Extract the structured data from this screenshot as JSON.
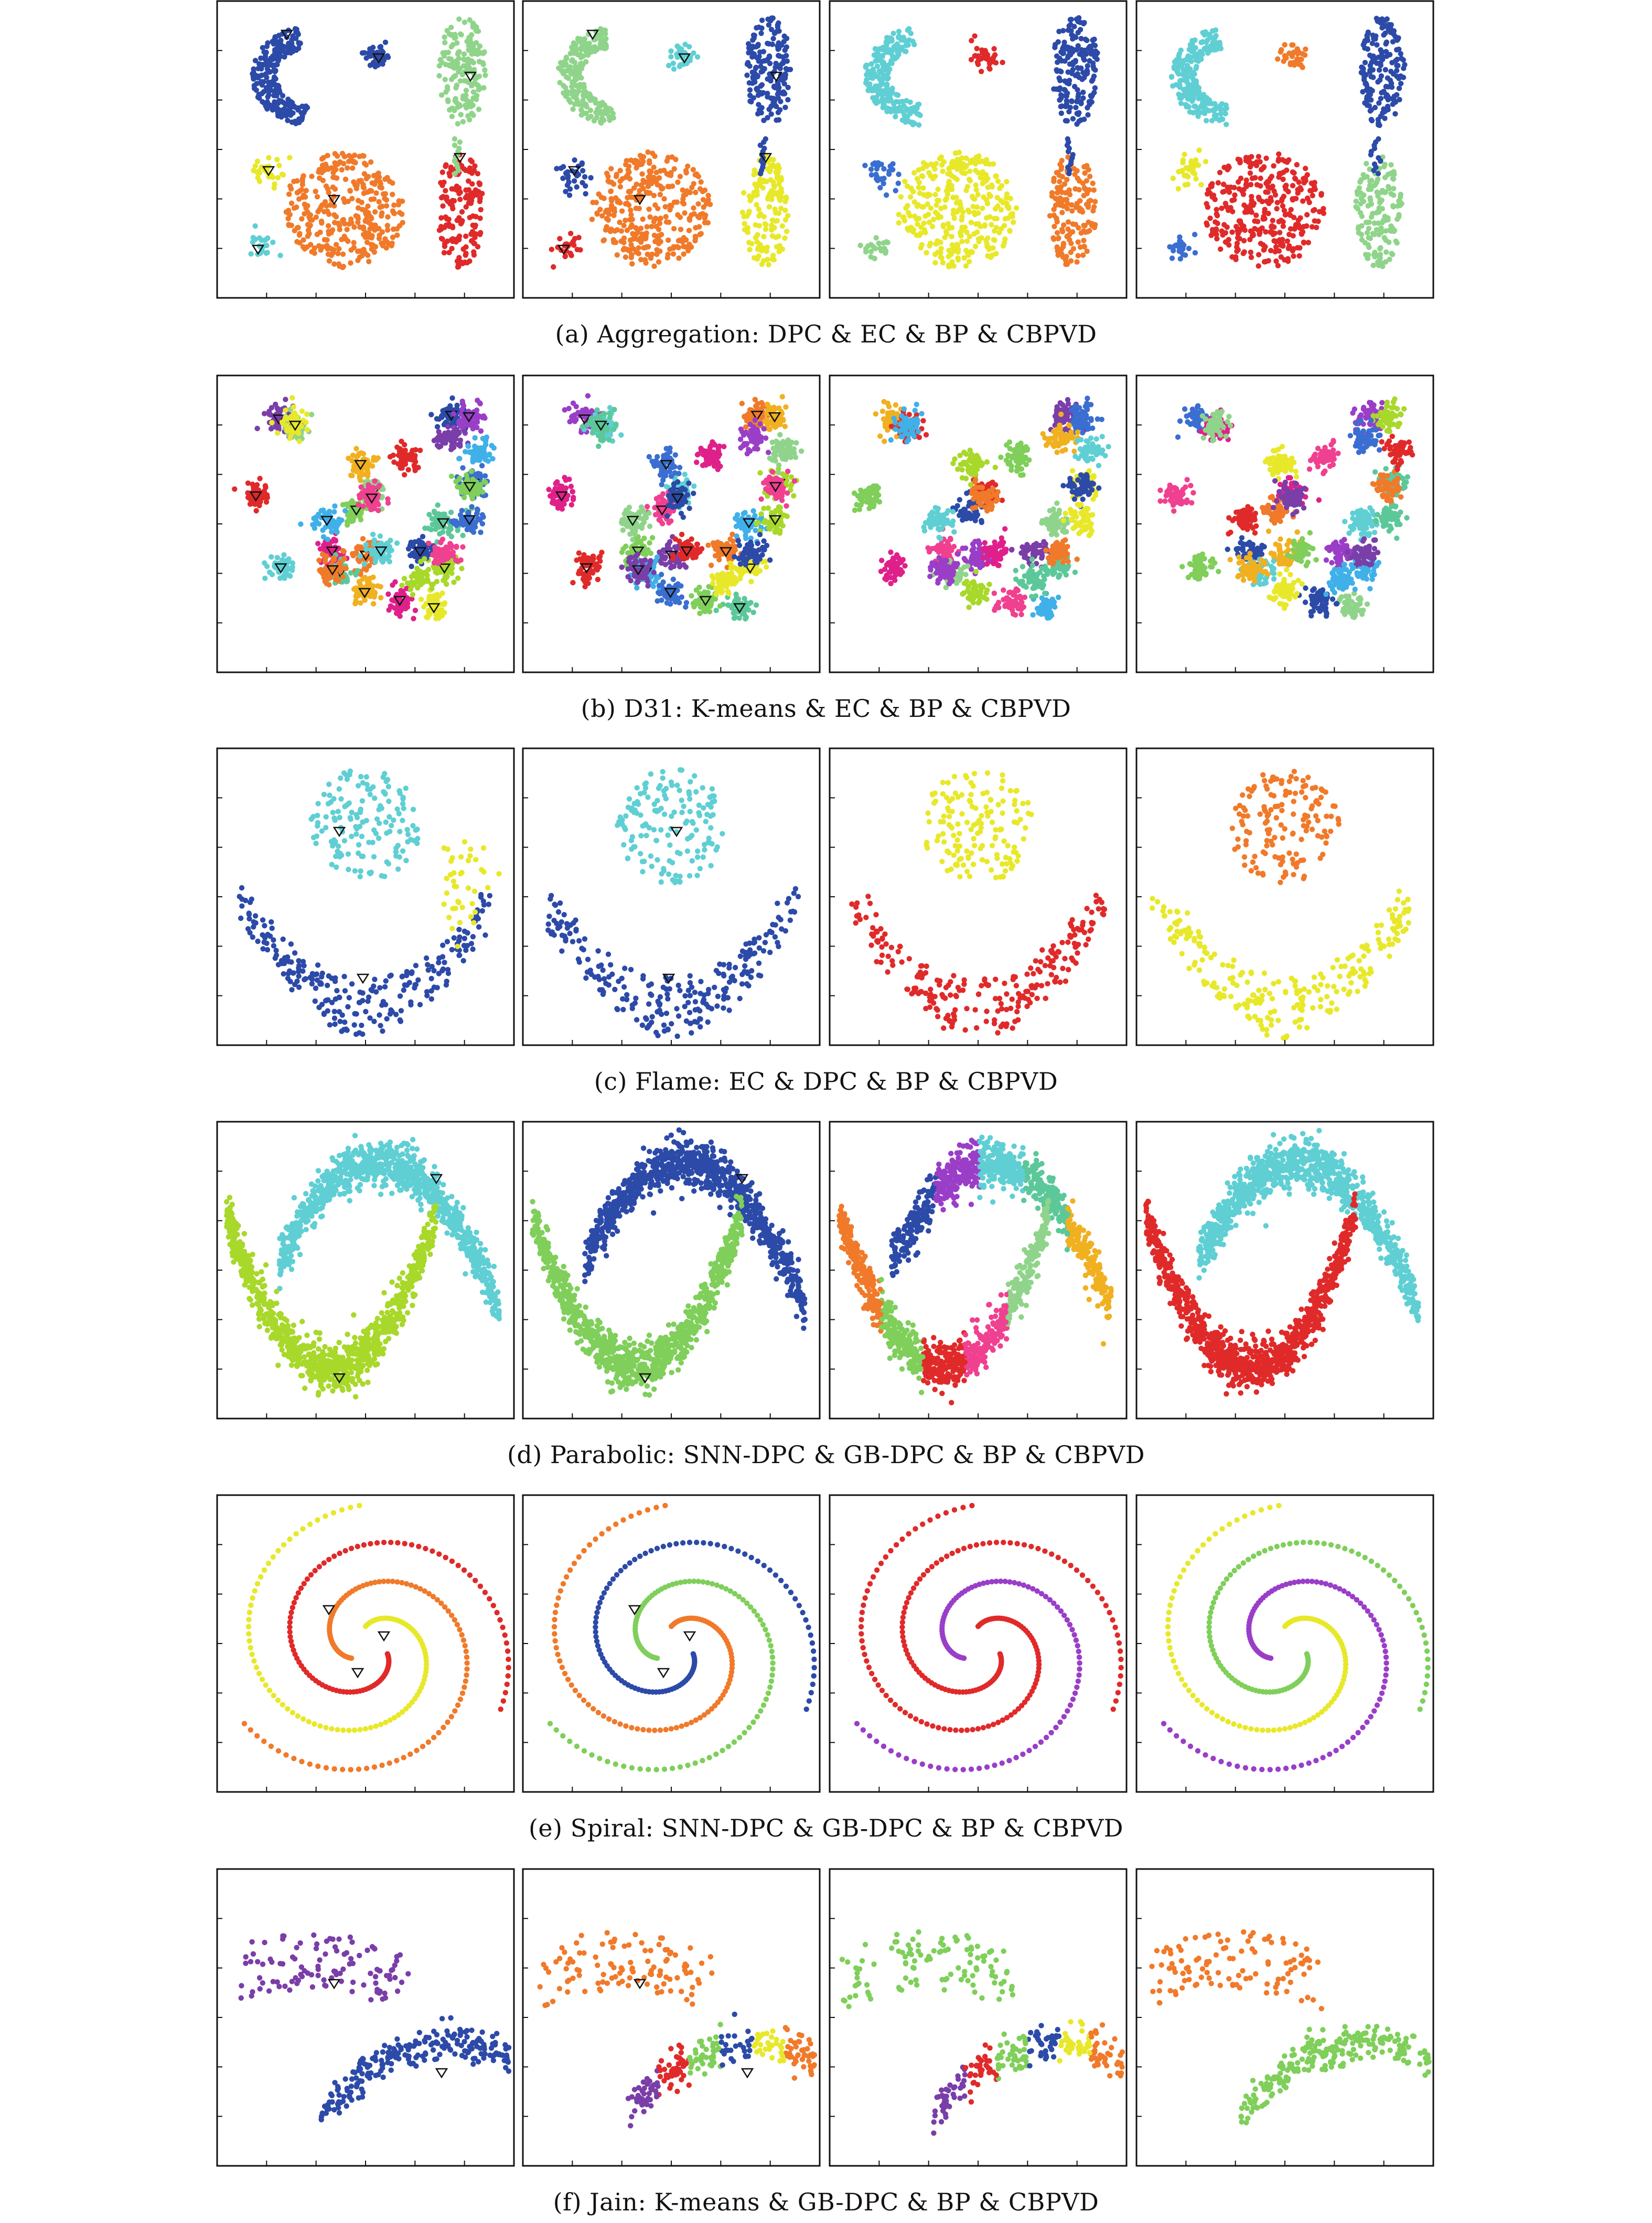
{
  "figure": {
    "panel_titles": [
      "(a) Aggregation: DPC & EC & BP & CBPVD",
      "(b) D31: K-means & EC & BP & CBPVD",
      "(c) Flame: EC & DPC & BP & CBPVD",
      "(d) Parabolic: SNN-DPC & GB-DPC & BP & CBPVD",
      "(e) Spiral: SNN-DPC & GB-DPC & BP & CBPVD",
      "(f) Jain: K-means & GB-DPC & BP & CBPVD"
    ],
    "palette": {
      "dark_blue": "#2c4aa8",
      "cyan": "#5fcfd4",
      "green": "#7fcf5a",
      "light_green": "#8fd48a",
      "orange": "#f07a2a",
      "red": "#e02a2a",
      "yellow": "#e8e82a",
      "purple": "#7a3ea8",
      "magenta": "#e0208a",
      "teal": "#5cc89a",
      "blue": "#3a6ed0",
      "lime": "#a8d82a",
      "violet": "#9a3ec8",
      "gold": "#f0b020",
      "pink": "#f04090",
      "sky": "#40b0e8",
      "axis": "#111111"
    }
  },
  "chart_data": [
    {
      "type": "scatter",
      "dataset": "Aggregation",
      "methods": [
        "DPC",
        "EC",
        "BP",
        "CBPVD"
      ],
      "shape": "aggregation",
      "centers_marked": [
        true,
        true,
        false,
        false
      ],
      "clusters": [
        {
          "region": "upper-left crescent",
          "colors": [
            "dark_blue",
            "light_green",
            "cyan",
            "cyan"
          ]
        },
        {
          "region": "small top blob",
          "colors": [
            "dark_blue",
            "cyan",
            "red",
            "orange"
          ]
        },
        {
          "region": "upper-right ellipse",
          "colors": [
            "light_green",
            "dark_blue",
            "dark_blue",
            "dark_blue"
          ]
        },
        {
          "region": "lower-right ellipse",
          "colors": [
            "red",
            "yellow",
            "orange",
            "light_green"
          ]
        },
        {
          "region": "center disc",
          "colors": [
            "orange",
            "orange",
            "yellow",
            "red"
          ]
        },
        {
          "region": "left small blob",
          "colors": [
            "yellow",
            "dark_blue",
            "blue",
            "yellow"
          ]
        },
        {
          "region": "bottom-left small blob",
          "colors": [
            "cyan",
            "red",
            "light_green",
            "blue"
          ]
        }
      ]
    },
    {
      "type": "scatter",
      "dataset": "D31",
      "methods": [
        "K-means",
        "EC",
        "BP",
        "CBPVD"
      ],
      "shape": "d31",
      "clusters_count": 31,
      "centers_marked": [
        true,
        true,
        false,
        false
      ]
    },
    {
      "type": "scatter",
      "dataset": "Flame",
      "methods": [
        "EC",
        "DPC",
        "BP",
        "CBPVD"
      ],
      "shape": "flame",
      "centers_marked": [
        true,
        true,
        false,
        false
      ],
      "clusters": [
        {
          "region": "top cluster",
          "colors": [
            "cyan",
            "cyan",
            "yellow",
            "orange"
          ]
        },
        {
          "region": "bottom arc",
          "colors": [
            "dark_blue",
            "dark_blue",
            "red",
            "yellow"
          ]
        }
      ]
    },
    {
      "type": "scatter",
      "dataset": "Parabolic",
      "methods": [
        "SNN-DPC",
        "GB-DPC",
        "BP",
        "CBPVD"
      ],
      "shape": "parabolic",
      "centers_marked": [
        true,
        true,
        false,
        false
      ],
      "clusters": [
        {
          "region": "upper arc",
          "colors": [
            "cyan",
            "dark_blue",
            "multi",
            "cyan"
          ]
        },
        {
          "region": "lower arc",
          "colors": [
            "lime",
            "green",
            "multi",
            "red"
          ]
        }
      ]
    },
    {
      "type": "scatter",
      "dataset": "Spiral",
      "methods": [
        "SNN-DPC",
        "GB-DPC",
        "BP",
        "CBPVD"
      ],
      "shape": "spiral",
      "arms": 3,
      "centers_marked": [
        true,
        true,
        false,
        false
      ],
      "clusters": [
        {
          "region": "arm 1",
          "colors": [
            "red",
            "dark_blue",
            "red",
            "green"
          ]
        },
        {
          "region": "arm 2",
          "colors": [
            "orange",
            "green",
            "violet",
            "violet"
          ]
        },
        {
          "region": "arm 3",
          "colors": [
            "yellow",
            "orange",
            "red",
            "yellow"
          ]
        }
      ]
    },
    {
      "type": "scatter",
      "dataset": "Jain",
      "methods": [
        "K-means",
        "GB-DPC",
        "BP",
        "CBPVD"
      ],
      "shape": "jain",
      "centers_marked": [
        true,
        true,
        false,
        false
      ],
      "clusters": [
        {
          "region": "upper-left crescent",
          "colors": [
            "purple",
            "orange",
            "green",
            "orange"
          ]
        },
        {
          "region": "lower crescent",
          "colors": [
            "dark_blue",
            "multi",
            "multi",
            "green"
          ]
        }
      ]
    }
  ]
}
